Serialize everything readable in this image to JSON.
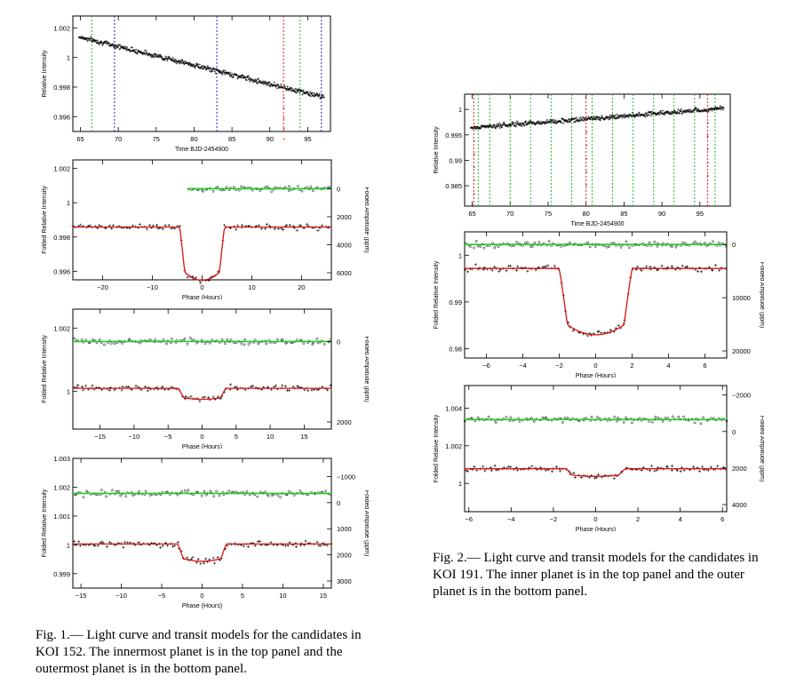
{
  "figure1": {
    "panels": [
      {
        "id": "f1p1",
        "type": "lightcurve",
        "xlabel": "Time BJD-2454900",
        "ylabel": "Relative Intensity",
        "xticks": [
          "65",
          "70",
          "75",
          "80",
          "85",
          "90",
          "95"
        ],
        "yticks": [
          "1.002",
          "1",
          "0.998",
          "0.996"
        ],
        "xlim": [
          64,
          98
        ],
        "ylim": [
          0.995,
          1.0028
        ],
        "green_lines": [
          66.5,
          94
        ],
        "blue_lines": [
          69.5,
          83,
          96.8
        ],
        "red_lines": [
          91.8
        ]
      },
      {
        "id": "f1p2",
        "type": "folded",
        "xlabel": "Phase (Hours)",
        "ylabel": "Folded Relative Intensity",
        "y2label": "Folded Amplitude (ppm)",
        "xticks": [
          "-20",
          "-10",
          "0",
          "10",
          "20"
        ],
        "yticks": [
          "1.002",
          "1",
          "0.998",
          "0.996"
        ],
        "y2ticks": [
          "0",
          "2000",
          "4000",
          "6000"
        ],
        "xlim": [
          -26,
          26
        ],
        "ylim": [
          0.9955,
          1.0025
        ],
        "transit_depth": 0.0031,
        "half_width": 4.5
      },
      {
        "id": "f1p3",
        "type": "folded",
        "xlabel": "Phase (Hours)",
        "ylabel": "Folded Relative Intensity",
        "y2label": "Folded Amplitude (ppm)",
        "xticks": [
          "-15",
          "-10",
          "-5",
          "0",
          "5",
          "10",
          "15"
        ],
        "yticks": [
          "1.002",
          "1"
        ],
        "y2ticks": [
          "0",
          "2000"
        ],
        "xlim": [
          -19,
          19
        ],
        "ylim": [
          0.9988,
          1.0026
        ],
        "transit_depth": 0.00035,
        "half_width": 3.5
      },
      {
        "id": "f1p4",
        "type": "folded",
        "xlabel": "Phase (Hours)",
        "ylabel": "Folded Relative Intensity",
        "y2label": "Folded Amplitude (ppm)",
        "xticks": [
          "-15",
          "-10",
          "-5",
          "0",
          "5",
          "10",
          "15"
        ],
        "yticks": [
          "1.003",
          "1.002",
          "1.001",
          "1",
          "0.999"
        ],
        "y2ticks": [
          "-1000",
          "0",
          "1000",
          "2000",
          "3000"
        ],
        "xlim": [
          -16,
          16
        ],
        "ylim": [
          0.9985,
          1.003
        ],
        "transit_depth": 0.0006,
        "half_width": 3
      }
    ],
    "caption": "Fig.  1.— Light curve and transit models for the candidates in KOI 152.  The innermost planet is in the top panel and the outermost planet is in the bottom panel."
  },
  "figure2": {
    "panels": [
      {
        "id": "f2p1",
        "type": "lightcurve",
        "xlabel": "Time BJD-2454900",
        "ylabel": "Relative Intensity",
        "xticks": [
          "65",
          "70",
          "75",
          "80",
          "85",
          "90",
          "95"
        ],
        "yticks": [
          "1",
          "0.995",
          "0.99",
          "0.985"
        ],
        "xlim": [
          64,
          99
        ],
        "ylim": [
          0.981,
          1.003
        ],
        "green_lines": [
          65.8,
          67.3,
          70,
          72.7,
          75.4,
          78.1,
          80.8,
          83.5,
          86.2,
          88.9,
          91.6,
          94.3,
          97
        ],
        "blue_lines": [],
        "red_lines": [
          65.2,
          80,
          96
        ]
      },
      {
        "id": "f2p2",
        "type": "folded",
        "xlabel": "Phase (Hours)",
        "ylabel": "Folded Relative Intensity",
        "y2label": "Folded Amplitude (ppm)",
        "xticks": [
          "-6",
          "-4",
          "-2",
          "0",
          "2",
          "4",
          "6"
        ],
        "yticks": [
          "1",
          "0.99",
          "0.98"
        ],
        "y2ticks": [
          "0",
          "10000",
          "20000"
        ],
        "xlim": [
          -7.2,
          7.2
        ],
        "ylim": [
          0.978,
          1.005
        ],
        "transit_depth": 0.0142,
        "half_width": 2
      },
      {
        "id": "f2p3",
        "type": "folded",
        "xlabel": "Phase (Hours)",
        "ylabel": "Folded Relative Intensity",
        "y2label": "Folded Amplitude (ppm)",
        "xticks": [
          "-6",
          "-4",
          "-2",
          "0",
          "2",
          "4",
          "6"
        ],
        "yticks": [
          "1.004",
          "1.002",
          "1"
        ],
        "y2ticks": [
          "-2000",
          "0",
          "2000",
          "4000"
        ],
        "xlim": [
          -6.2,
          6.2
        ],
        "ylim": [
          0.9985,
          1.0052
        ],
        "transit_depth": 0.0004,
        "half_width": 1.4
      }
    ],
    "caption": "Fig.  2.— Light curve and transit models for the candidates in KOI 191.  The inner planet is in the top panel and the outer planet is in the bottom panel."
  }
}
